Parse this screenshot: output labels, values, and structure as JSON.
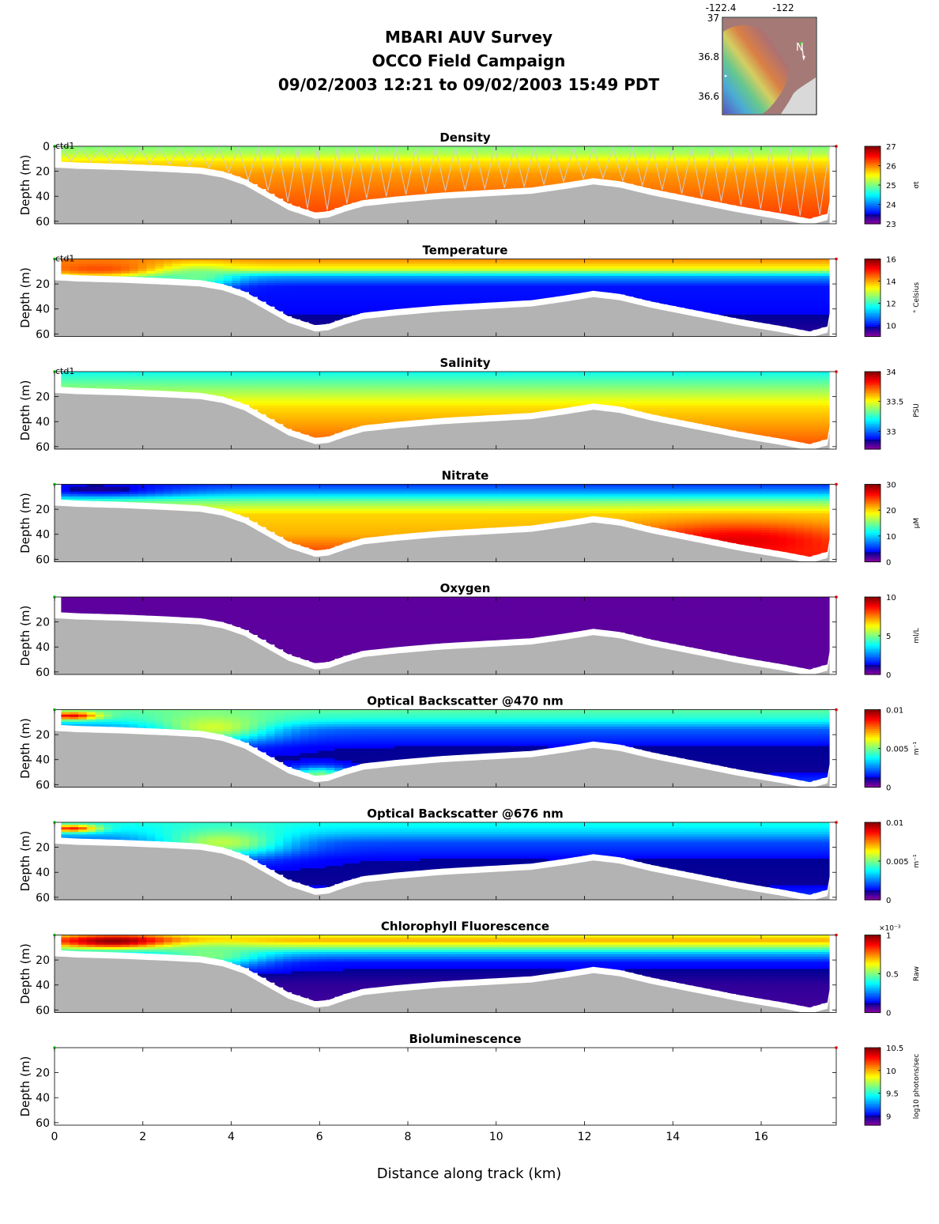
{
  "header": {
    "title_lines": [
      "MBARI AUV Survey",
      "OCCO Field Campaign",
      "09/02/2003 12:21  to 09/02/2003 15:49 PDT"
    ]
  },
  "inset_map": {
    "lon_ticks": [
      "-122.4",
      "-122"
    ],
    "lat_ticks": [
      "37",
      "36.8",
      "36.6"
    ],
    "north_label": "N",
    "land_color": "#a97b77",
    "ocean_color": "#d9d9d9"
  },
  "axes": {
    "xlabel": "Distance along track (km)",
    "ylabel": "Depth (m)",
    "xticks": [
      "0",
      "2",
      "4",
      "6",
      "8",
      "10",
      "12",
      "14",
      "16"
    ],
    "xlim": [
      0,
      17.7
    ],
    "ylim": [
      0,
      62
    ],
    "yticks_first": [
      "0",
      "20",
      "40",
      "60"
    ],
    "yticks": [
      "20",
      "40",
      "60"
    ],
    "ctd_label": "ctd1",
    "seafloor_color": "#b3b3b3"
  },
  "chart_data": [
    {
      "type": "heatmap",
      "title": "Density",
      "ylabel": "Depth (m)",
      "xlabel": "",
      "cbar_ticks": [
        "27",
        "26",
        "25",
        "24",
        "23"
      ],
      "cbar_unit": "σt",
      "clim": [
        23,
        27
      ],
      "show_ctd": true,
      "show_zero": true,
      "show_track": true,
      "bands": [
        {
          "d": 0,
          "v": 25.0
        },
        {
          "d": 6,
          "v": 25.2
        },
        {
          "d": 12,
          "v": 25.6
        },
        {
          "d": 22,
          "v": 25.9
        },
        {
          "d": 40,
          "v": 26.1
        },
        {
          "d": 62,
          "v": 26.3
        }
      ],
      "blobs": []
    },
    {
      "type": "heatmap",
      "title": "Temperature",
      "ylabel": "Depth (m)",
      "xlabel": "",
      "cbar_ticks": [
        "16",
        "14",
        "12",
        "10"
      ],
      "cbar_unit": "° Celsius",
      "clim": [
        9,
        16
      ],
      "show_ctd": true,
      "show_zero": false,
      "show_track": false,
      "bands": [
        {
          "d": 0,
          "v": 14.2
        },
        {
          "d": 8,
          "v": 13.3
        },
        {
          "d": 14,
          "v": 11.0
        },
        {
          "d": 22,
          "v": 10.0
        },
        {
          "d": 40,
          "v": 9.9
        },
        {
          "d": 62,
          "v": 9.6
        }
      ],
      "blobs": [
        {
          "x": 1.0,
          "d": 8,
          "rx": 1.8,
          "rd": 8,
          "v": 14.6
        },
        {
          "x": 3.2,
          "d": 14,
          "rx": 0.9,
          "rd": 9,
          "v": 12.4
        }
      ]
    },
    {
      "type": "heatmap",
      "title": "Salinity",
      "ylabel": "Depth (m)",
      "xlabel": "",
      "cbar_ticks": [
        "34",
        "33.5",
        "33"
      ],
      "cbar_unit": "PSU",
      "clim": [
        32.7,
        34
      ],
      "show_ctd": true,
      "show_zero": false,
      "show_track": false,
      "bands": [
        {
          "d": 0,
          "v": 33.2
        },
        {
          "d": 12,
          "v": 33.35
        },
        {
          "d": 28,
          "v": 33.55
        },
        {
          "d": 45,
          "v": 33.65
        },
        {
          "d": 62,
          "v": 33.75
        }
      ],
      "blobs": []
    },
    {
      "type": "heatmap",
      "title": "Nitrate",
      "ylabel": "Depth (m)",
      "xlabel": "",
      "cbar_ticks": [
        "30",
        "20",
        "10",
        "0"
      ],
      "cbar_unit": "μM",
      "clim": [
        0,
        30
      ],
      "show_ctd": false,
      "show_zero": false,
      "show_track": false,
      "bands": [
        {
          "d": 0,
          "v": 5
        },
        {
          "d": 7,
          "v": 9
        },
        {
          "d": 14,
          "v": 15
        },
        {
          "d": 24,
          "v": 20
        },
        {
          "d": 40,
          "v": 21
        },
        {
          "d": 62,
          "v": 26
        }
      ],
      "blobs": [
        {
          "x": 1.0,
          "d": 4,
          "rx": 1.8,
          "rd": 6,
          "v": 3
        },
        {
          "x": 15.5,
          "d": 45,
          "rx": 2.5,
          "rd": 14,
          "v": 27
        }
      ]
    },
    {
      "type": "heatmap",
      "title": "Oxygen",
      "ylabel": "Depth (m)",
      "xlabel": "",
      "cbar_ticks": [
        "10",
        "5",
        "0"
      ],
      "cbar_unit": "ml/L",
      "clim": [
        0,
        10
      ],
      "show_ctd": false,
      "show_zero": false,
      "show_track": false,
      "bands": [
        {
          "d": 0,
          "v": 0.4
        },
        {
          "d": 62,
          "v": 0.4
        }
      ],
      "blobs": []
    },
    {
      "type": "heatmap",
      "title": "Optical Backscatter @470 nm",
      "ylabel": "Depth (m)",
      "xlabel": "",
      "cbar_ticks": [
        "0.01",
        "0.005",
        "0"
      ],
      "cbar_unit": "m⁻¹",
      "clim": [
        0,
        0.01
      ],
      "show_ctd": false,
      "show_zero": false,
      "show_track": false,
      "bands": [
        {
          "d": 0,
          "v": 0.0047
        },
        {
          "d": 8,
          "v": 0.004
        },
        {
          "d": 16,
          "v": 0.0022
        },
        {
          "d": 30,
          "v": 0.0012
        },
        {
          "d": 50,
          "v": 0.0011
        },
        {
          "d": 62,
          "v": 0.0022
        }
      ],
      "blobs": [
        {
          "x": 0.4,
          "d": 5,
          "rx": 0.6,
          "rd": 3,
          "v": 0.009
        },
        {
          "x": 3.6,
          "d": 14,
          "rx": 1.4,
          "rd": 12,
          "v": 0.0058
        },
        {
          "x": 6.0,
          "d": 52,
          "rx": 0.7,
          "rd": 6,
          "v": 0.005
        }
      ]
    },
    {
      "type": "heatmap",
      "title": "Optical Backscatter @676 nm",
      "ylabel": "Depth (m)",
      "xlabel": "",
      "cbar_ticks": [
        "0.01",
        "0.005",
        "0"
      ],
      "cbar_unit": "m⁻¹",
      "clim": [
        0,
        0.01
      ],
      "show_ctd": false,
      "show_zero": false,
      "show_track": false,
      "bands": [
        {
          "d": 0,
          "v": 0.004
        },
        {
          "d": 8,
          "v": 0.0033
        },
        {
          "d": 16,
          "v": 0.002
        },
        {
          "d": 30,
          "v": 0.0012
        },
        {
          "d": 50,
          "v": 0.0011
        },
        {
          "d": 62,
          "v": 0.002
        }
      ],
      "blobs": [
        {
          "x": 0.4,
          "d": 5,
          "rx": 0.6,
          "rd": 3,
          "v": 0.0085
        },
        {
          "x": 3.8,
          "d": 16,
          "rx": 1.5,
          "rd": 12,
          "v": 0.0056
        }
      ]
    },
    {
      "type": "heatmap",
      "title": "Chlorophyll Fluorescence",
      "ylabel": "Depth (m)",
      "xlabel": "",
      "cbar_ticks": [
        "1",
        "0.5",
        "0"
      ],
      "cbar_unit": "Raw",
      "cbar_exp": "×10⁻³",
      "clim": [
        0,
        1
      ],
      "show_ctd": false,
      "show_zero": false,
      "show_track": false,
      "bands": [
        {
          "d": 0,
          "v": 0.58
        },
        {
          "d": 4,
          "v": 0.72
        },
        {
          "d": 9,
          "v": 0.55
        },
        {
          "d": 15,
          "v": 0.3
        },
        {
          "d": 22,
          "v": 0.14
        },
        {
          "d": 40,
          "v": 0.08
        },
        {
          "d": 62,
          "v": 0.06
        }
      ],
      "blobs": [
        {
          "x": 1.4,
          "d": 5,
          "rx": 1.3,
          "rd": 5,
          "v": 1.0
        },
        {
          "x": 3.5,
          "d": 16,
          "rx": 1.3,
          "rd": 10,
          "v": 0.5
        }
      ]
    },
    {
      "type": "heatmap",
      "title": "Bioluminescence",
      "ylabel": "Depth (m)",
      "xlabel": "",
      "cbar_ticks": [
        "10.5",
        "10",
        "9.5",
        "9"
      ],
      "cbar_unit": "log10 photons/sec",
      "clim": [
        8.8,
        10.5
      ],
      "show_ctd": false,
      "show_zero": false,
      "show_track": false,
      "empty": true,
      "bands": [],
      "blobs": []
    }
  ]
}
